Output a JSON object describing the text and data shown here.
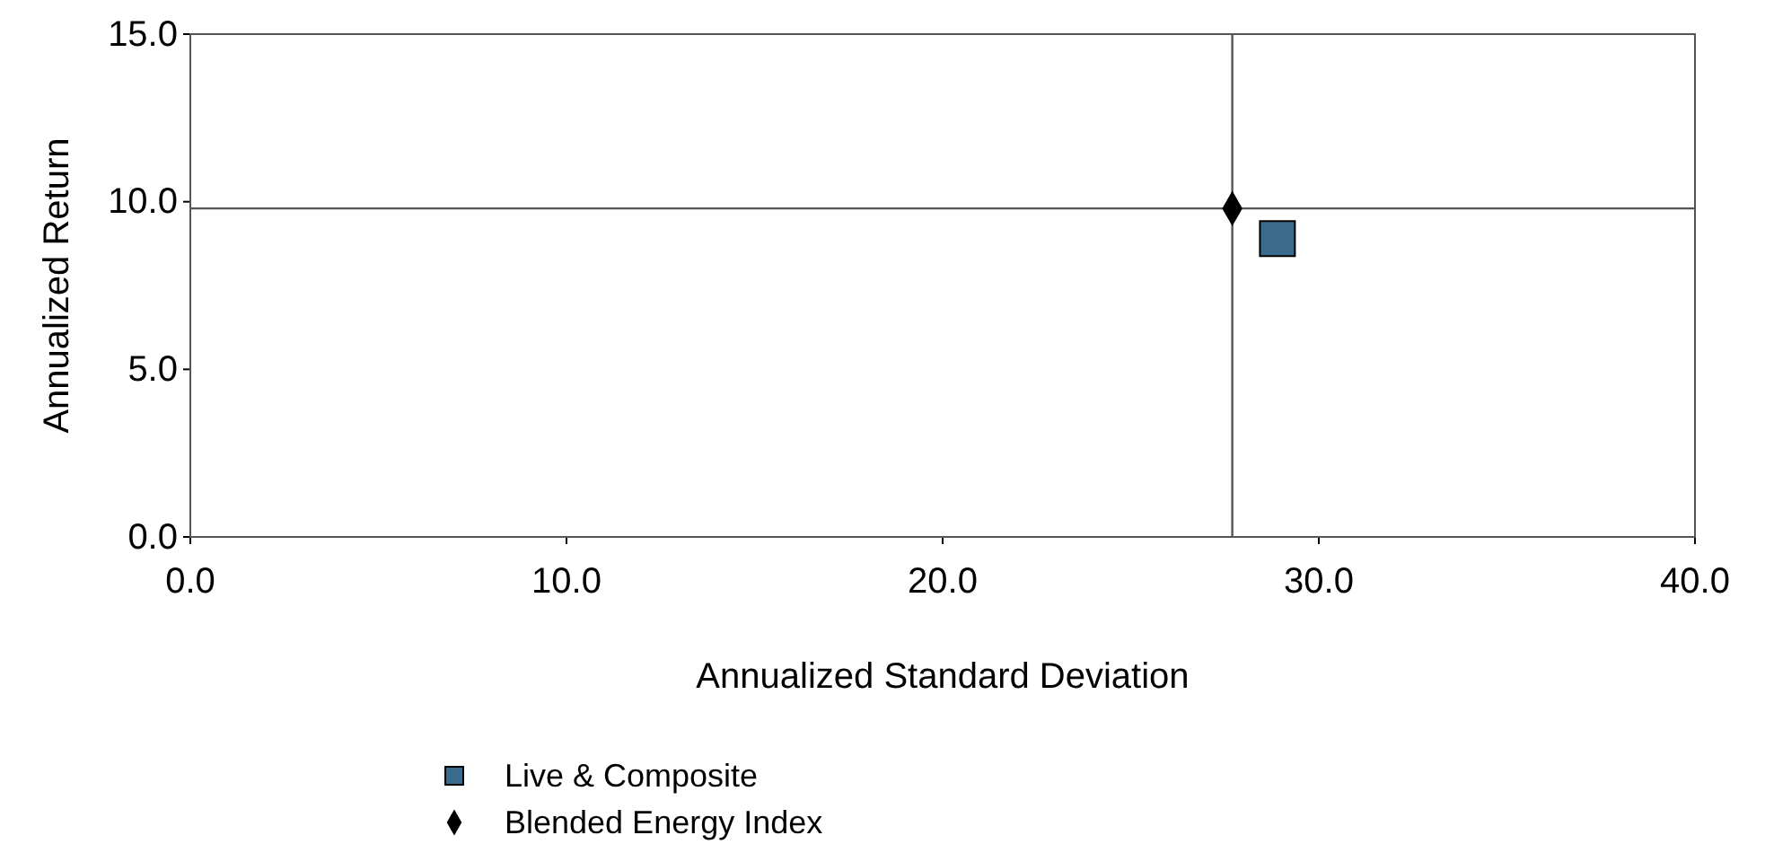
{
  "chart_data": {
    "type": "scatter",
    "xlabel": "Annualized Standard Deviation",
    "ylabel": "Annualized Return",
    "xlim": [
      0,
      40
    ],
    "ylim": [
      0,
      15
    ],
    "xticks": [
      {
        "value": 0,
        "label": "0.0"
      },
      {
        "value": 10,
        "label": "10.0"
      },
      {
        "value": 20,
        "label": "20.0"
      },
      {
        "value": 30,
        "label": "30.0"
      },
      {
        "value": 40,
        "label": "40.0"
      }
    ],
    "yticks": [
      {
        "value": 0,
        "label": "0.0"
      },
      {
        "value": 5,
        "label": "5.0"
      },
      {
        "value": 10,
        "label": "10.0"
      },
      {
        "value": 15,
        "label": "15.0"
      }
    ],
    "series": [
      {
        "name": "Live & Composite",
        "color": "#3a6a8c",
        "marker": "square",
        "x": [
          28.9
        ],
        "values": [
          8.9
        ]
      },
      {
        "name": "Blended Energy Index",
        "color": "#000000",
        "marker": "diamond",
        "x": [
          27.7
        ],
        "values": [
          9.8
        ]
      }
    ],
    "ref_lines": [
      {
        "axis": "x",
        "value": 27.7,
        "color": "#555555"
      },
      {
        "axis": "y",
        "value": 9.8,
        "color": "#555555"
      }
    ],
    "legend": "bottom",
    "grid": false
  }
}
